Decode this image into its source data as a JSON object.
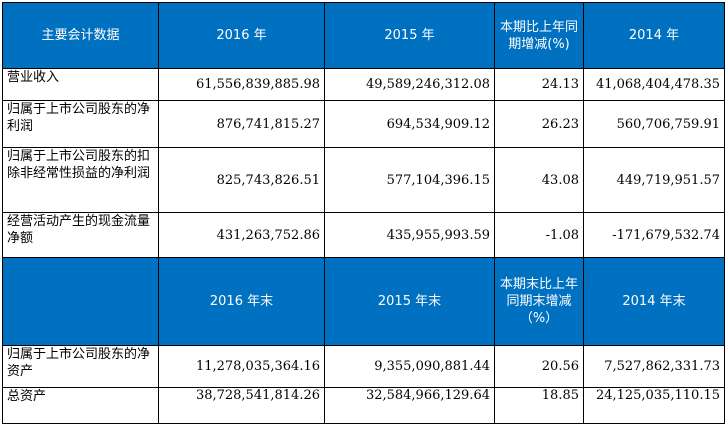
{
  "header1": {
    "col0": "主要会计数据",
    "col1": "2016 年",
    "col2": "2015 年",
    "col3": "本期比上年同期增减(%)",
    "col4": "2014 年"
  },
  "rows1": [
    {
      "label": "营业收入",
      "v2016": "61,556,839,885.98",
      "v2015": "49,589,246,312.08",
      "change": "24.13",
      "v2014": "41,068,404,478.35"
    },
    {
      "label": "归属于上市公司股东的净利润",
      "v2016": "876,741,815.27",
      "v2015": "694,534,909.12",
      "change": "26.23",
      "v2014": "560,706,759.91"
    },
    {
      "label": "归属于上市公司股东的扣除非经常性损益的净利润",
      "v2016": "825,743,826.51",
      "v2015": "577,104,396.15",
      "change": "43.08",
      "v2014": "449,719,951.57"
    },
    {
      "label": "经营活动产生的现金流量净额",
      "v2016": "431,263,752.86",
      "v2015": "435,955,993.59",
      "change": "-1.08",
      "v2014": "-171,679,532.74"
    }
  ],
  "header2": {
    "col1": "2016 年末",
    "col2": "2015 年末",
    "col3": "本期末比上年同期末增减（%）",
    "col4": "2014 年末"
  },
  "rows2": [
    {
      "label": "归属于上市公司股东的净资产",
      "v2016": "11,278,035,364.16",
      "v2015": "9,355,090,881.44",
      "change": "20.56",
      "v2014": "7,527,862,331.73"
    },
    {
      "label": "总资产",
      "v2016": "38,728,541,814.26",
      "v2015": "32,584,966,129.64",
      "change": "18.85",
      "v2014": "24,125,035,110.15"
    }
  ]
}
